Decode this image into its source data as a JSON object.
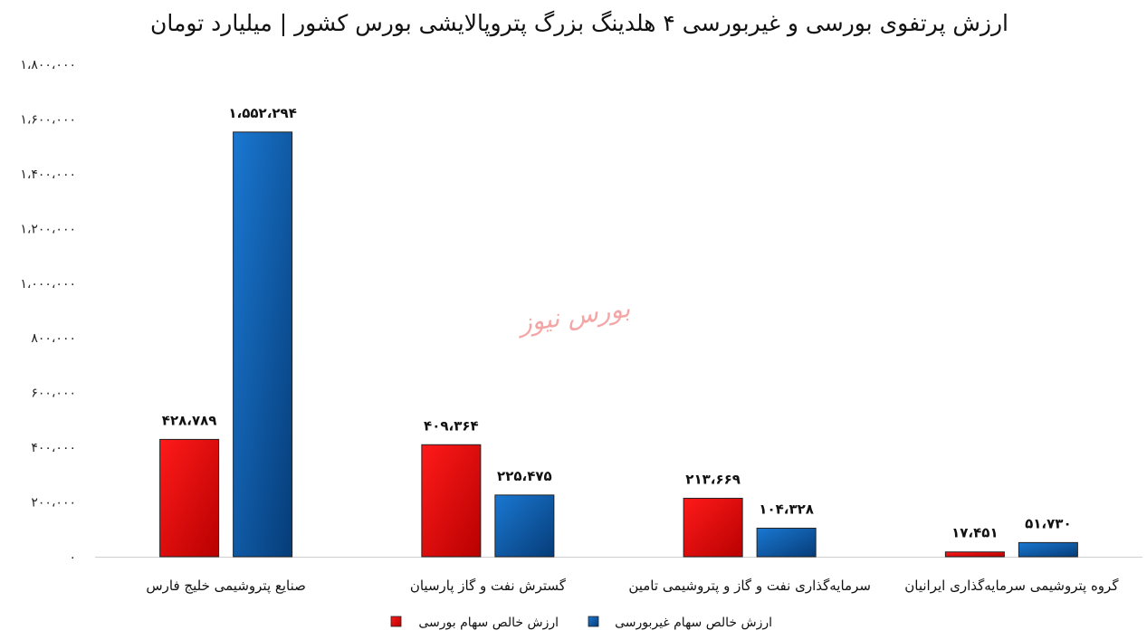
{
  "chart_data": {
    "type": "bar",
    "title": "ارزش پرتفوی بورسی و غیربورسی ۴ هلدینگ بزرگ پتروپالایشی بورس کشور | میلیارد تومان",
    "categories": [
      "صنایع پتروشیمی خلیج فارس",
      "گسترش نفت و گاز پارسیان",
      "سرمایه‌گذاری نفت و گاز و پتروشیمی تامین",
      "گروه پتروشیمی سرمایه‌گذاری ایرانیان"
    ],
    "series": [
      {
        "name": "ارزش خالص سهام بورسی",
        "color": "#e00000",
        "values": [
          428789,
          409364,
          213669,
          17451
        ],
        "labels": [
          "۴۲۸،۷۸۹",
          "۴۰۹،۳۶۴",
          "۲۱۳،۶۶۹",
          "۱۷،۴۵۱"
        ]
      },
      {
        "name": "ارزش خالص سهام غیربورسی",
        "color": "#0a5fb4",
        "values": [
          1552294,
          225475,
          104328,
          51730
        ],
        "labels": [
          "۱،۵۵۲،۲۹۴",
          "۲۲۵،۴۷۵",
          "۱۰۴،۳۲۸",
          "۵۱،۷۳۰"
        ]
      }
    ],
    "ylim": [
      0,
      1800000
    ],
    "y_ticks": [
      0,
      200000,
      400000,
      600000,
      800000,
      1000000,
      1200000,
      1400000,
      1600000,
      1800000
    ],
    "y_tick_labels": [
      "۰",
      "۲۰۰،۰۰۰",
      "۴۰۰،۰۰۰",
      "۶۰۰،۰۰۰",
      "۸۰۰،۰۰۰",
      "۱،۰۰۰،۰۰۰",
      "۱،۲۰۰،۰۰۰",
      "۱،۴۰۰،۰۰۰",
      "۱،۶۰۰،۰۰۰",
      "۱،۸۰۰،۰۰۰"
    ],
    "grid": false,
    "legend": "bottom",
    "watermark": "بورس نیوز"
  }
}
